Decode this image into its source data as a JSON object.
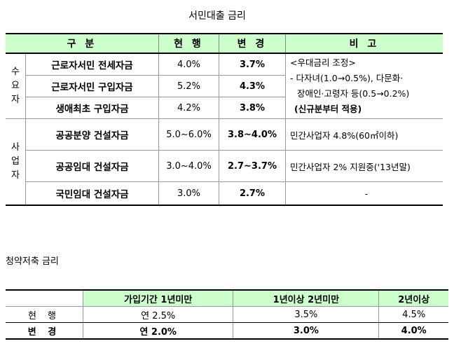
{
  "loan_title": "서민대출 금리",
  "loan_table": {
    "headers": [
      "구 분",
      "현 행",
      "변 경",
      "비 고"
    ],
    "groups": [
      {
        "label": "수요자",
        "rows": [
          {
            "name": "근로자서민 전세자금",
            "current": "4.0%",
            "changed": "3.7%"
          },
          {
            "name": "근로자서민 구입자금",
            "current": "5.2%",
            "changed": "4.3%"
          },
          {
            "name": "생애최초 구입자금",
            "current": "4.2%",
            "changed": "3.8%"
          }
        ],
        "note": {
          "line1": "<우대금리 조정>",
          "line2": "- 다자녀(1.0→0.5%), 다문화·",
          "line3": "장애인·고령자 등(0.5→0.2%)",
          "line4": "(신규분부터 적용)"
        }
      },
      {
        "label": "사업자",
        "rows": [
          {
            "name": "공공분양 건설자금",
            "current": "5.0~6.0%",
            "changed": "3.8~4.0%",
            "note": "민간사업자 4.8%(60㎡이하)"
          },
          {
            "name": "공공임대 건설자금",
            "current": "3.0~4.0%",
            "changed": "2.7~3.7%",
            "note": "민간사업자 2% 지원중('13년말)"
          },
          {
            "name": "국민임대 건설자금",
            "current": "3.0%",
            "changed": "2.7%",
            "note": "-"
          }
        ]
      }
    ]
  },
  "savings_title": "청약저축 금리",
  "savings_table": {
    "headers": [
      "",
      "가입기간 1년미만",
      "1년이상 2년미만",
      "2년이상"
    ],
    "rows": [
      {
        "label": "현 행",
        "values": [
          "연 2.5%",
          "3.5%",
          "4.5%"
        ]
      },
      {
        "label": "변 경",
        "values": [
          "연 2.0%",
          "3.0%",
          "4.0%"
        ]
      }
    ]
  }
}
